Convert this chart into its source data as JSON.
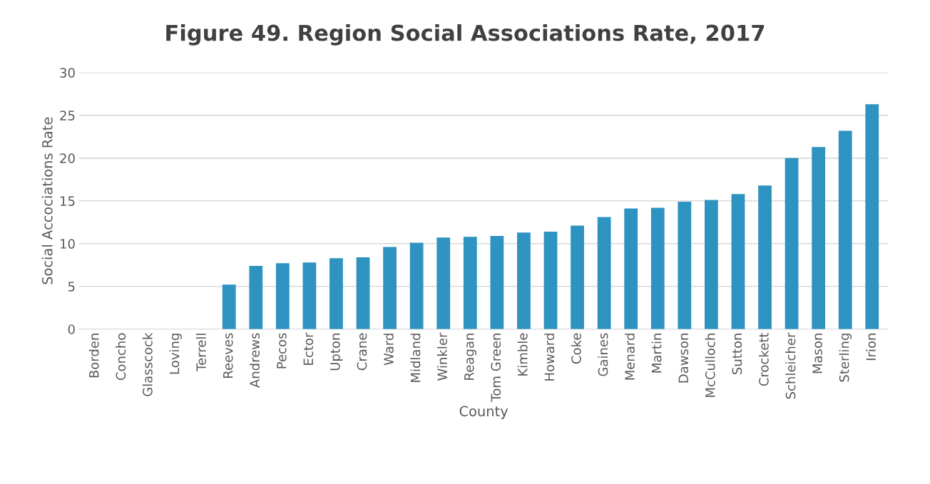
{
  "chart_data": {
    "type": "bar",
    "title": "Figure 49. Region Social Associations Rate, 2017",
    "xlabel": "County",
    "ylabel": "Social Accociations Rate",
    "categories": [
      "Borden",
      "Concho",
      "Glasscock",
      "Loving",
      "Terrell",
      "Reeves",
      "Andrews",
      "Pecos",
      "Ector",
      "Upton",
      "Crane",
      "Ward",
      "Midland",
      "Winkler",
      "Reagan",
      "Tom Green",
      "Kimble",
      "Howard",
      "Coke",
      "Gaines",
      "Menard",
      "Martin",
      "Dawson",
      "McCulloch",
      "Sutton",
      "Crockett",
      "Schleicher",
      "Mason",
      "Sterling",
      "Irion"
    ],
    "values": [
      null,
      null,
      null,
      null,
      null,
      5.2,
      7.4,
      7.7,
      7.8,
      8.3,
      8.4,
      9.6,
      10.1,
      10.7,
      10.8,
      10.9,
      11.3,
      11.4,
      12.1,
      13.1,
      14.1,
      14.2,
      14.9,
      15.1,
      15.8,
      16.8,
      20.0,
      21.3,
      23.2,
      26.3
    ],
    "color": "#2e93c0",
    "ylim": [
      0,
      30
    ],
    "yticks": [
      0,
      5,
      10,
      15,
      20,
      25,
      30
    ],
    "grid": "y"
  }
}
